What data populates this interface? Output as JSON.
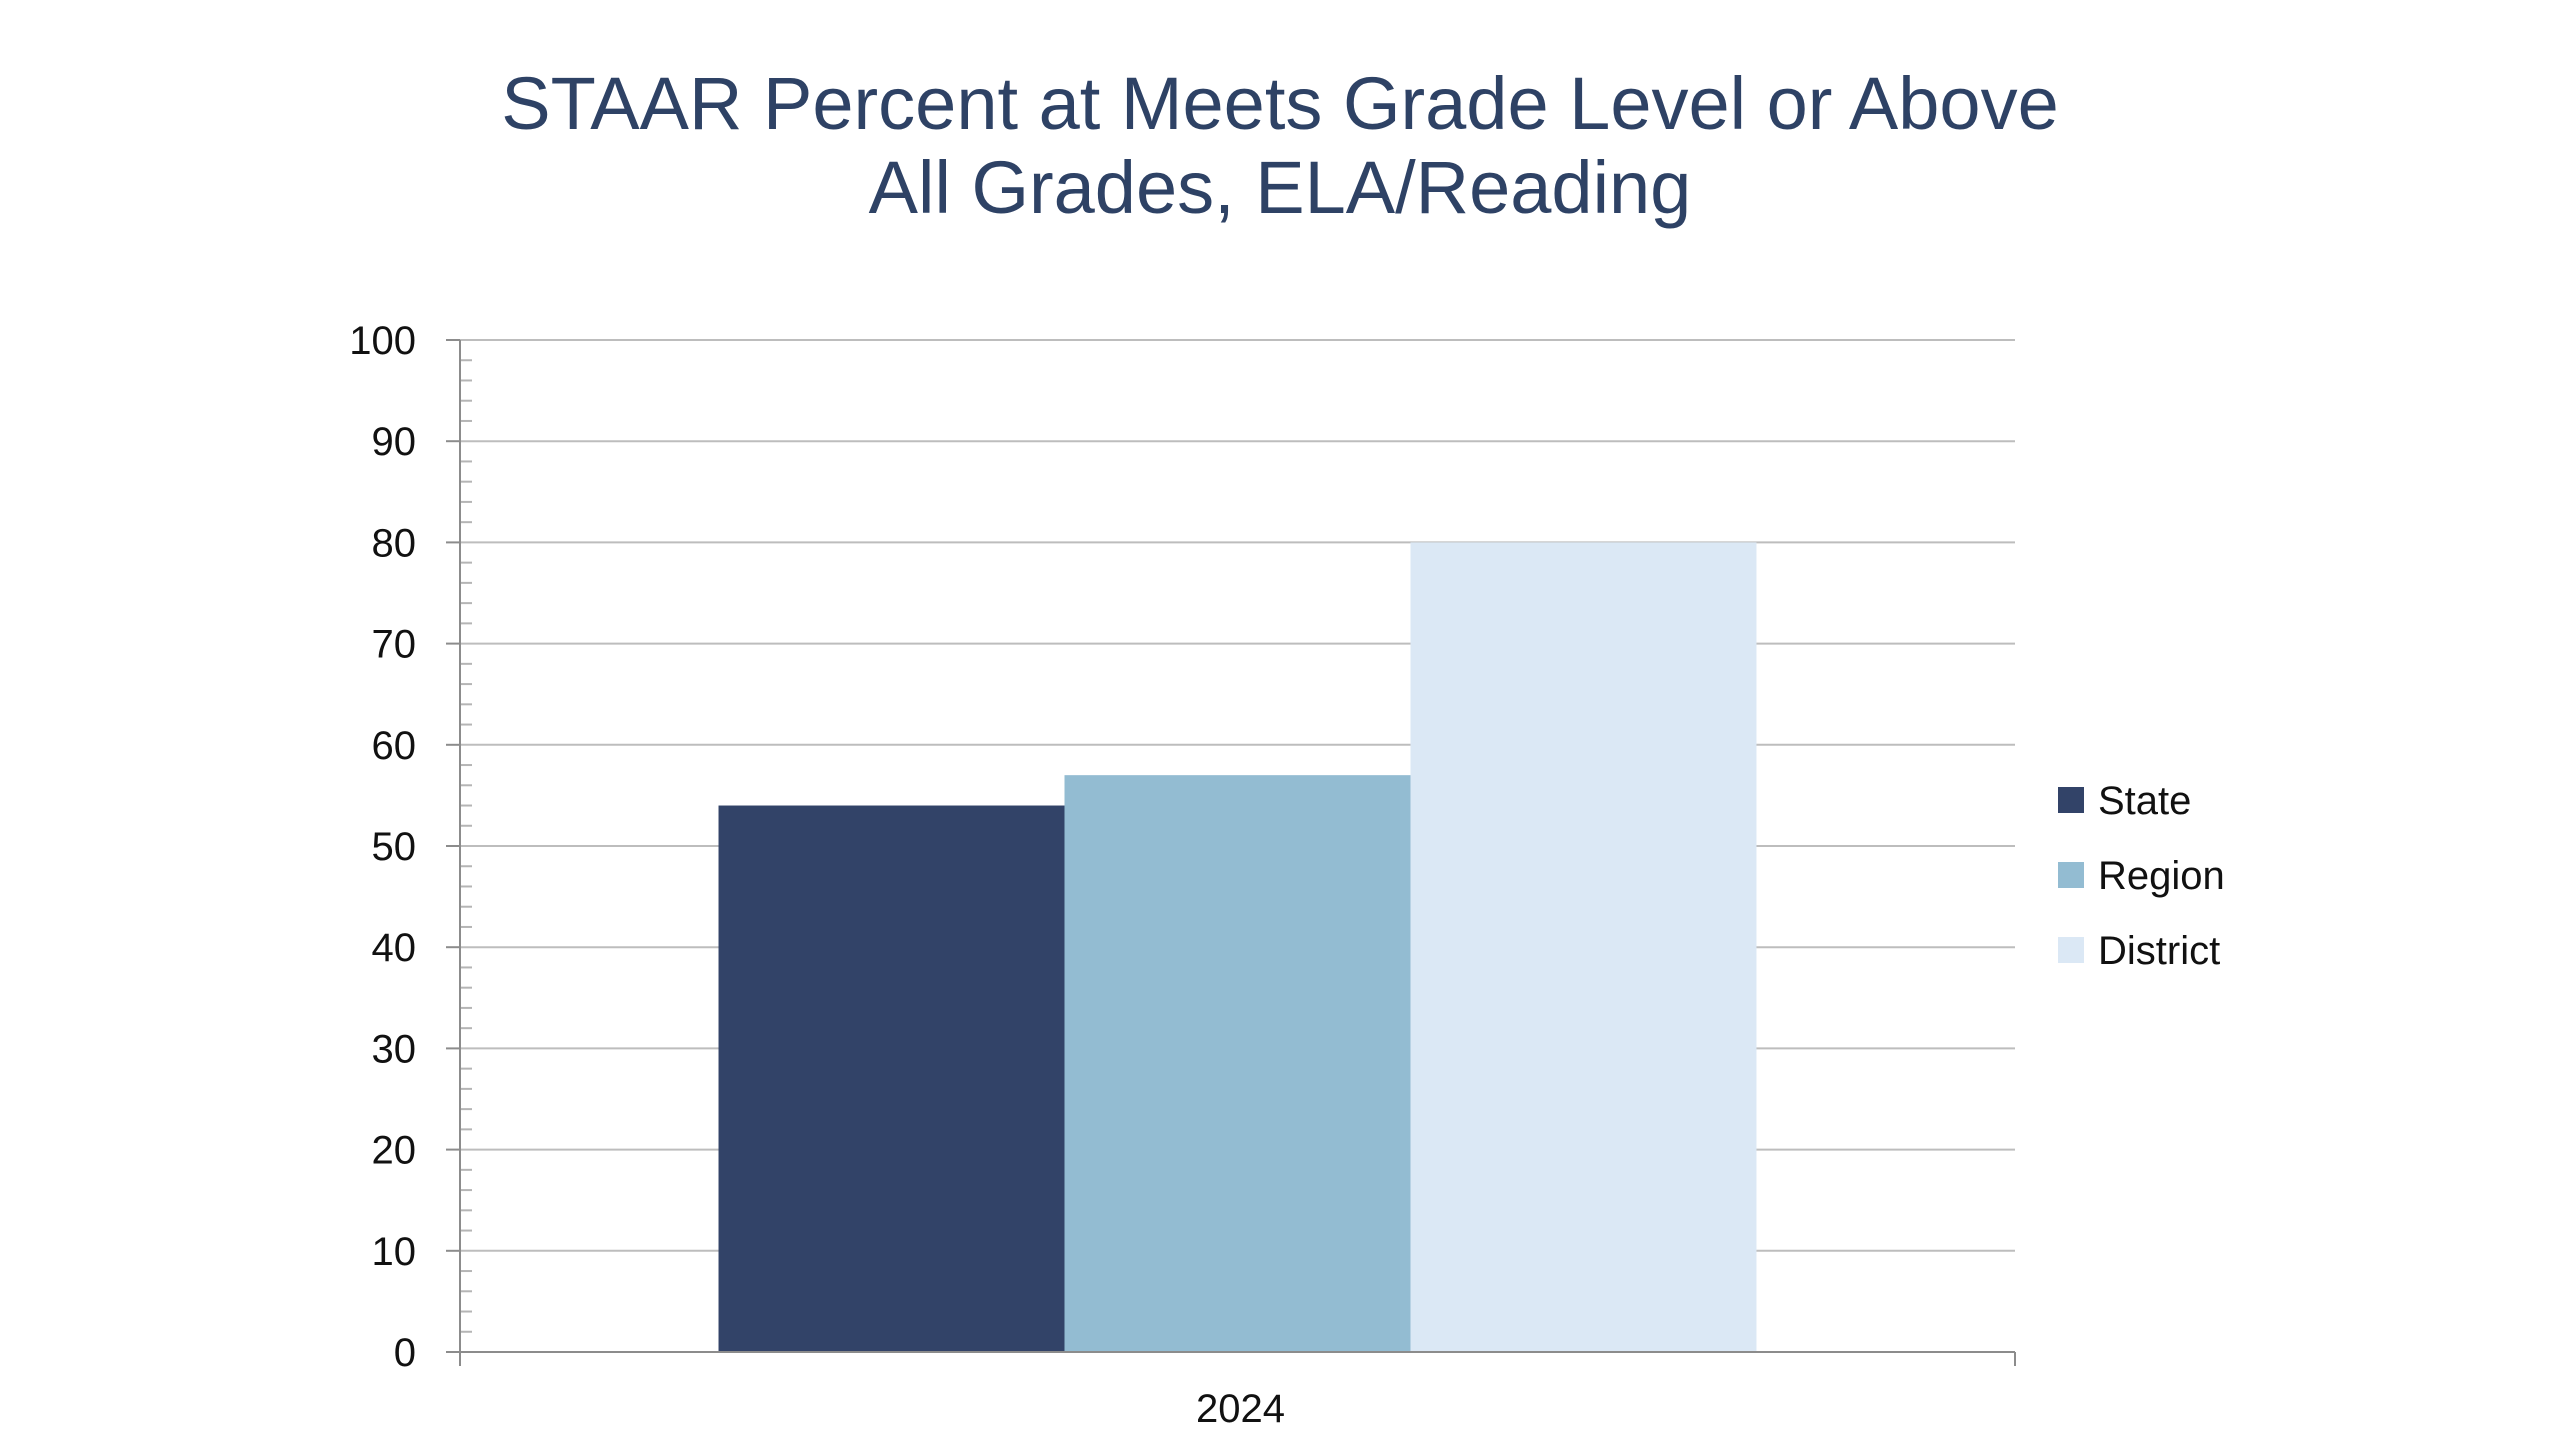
{
  "chart_data": {
    "type": "bar",
    "title_lines": [
      "STAAR Percent at Meets Grade Level or Above",
      "All Grades, ELA/Reading"
    ],
    "categories": [
      "2024"
    ],
    "series": [
      {
        "name": "State",
        "values": [
          54
        ],
        "color": "#324368"
      },
      {
        "name": "Region",
        "values": [
          57
        ],
        "color": "#93bcd2"
      },
      {
        "name": "District",
        "values": [
          80
        ],
        "color": "#dbe8f5"
      }
    ],
    "ylim": [
      0,
      100
    ],
    "yticks": [
      0,
      10,
      20,
      30,
      40,
      50,
      60,
      70,
      80,
      90,
      100
    ],
    "grid": true,
    "legend": "right"
  }
}
